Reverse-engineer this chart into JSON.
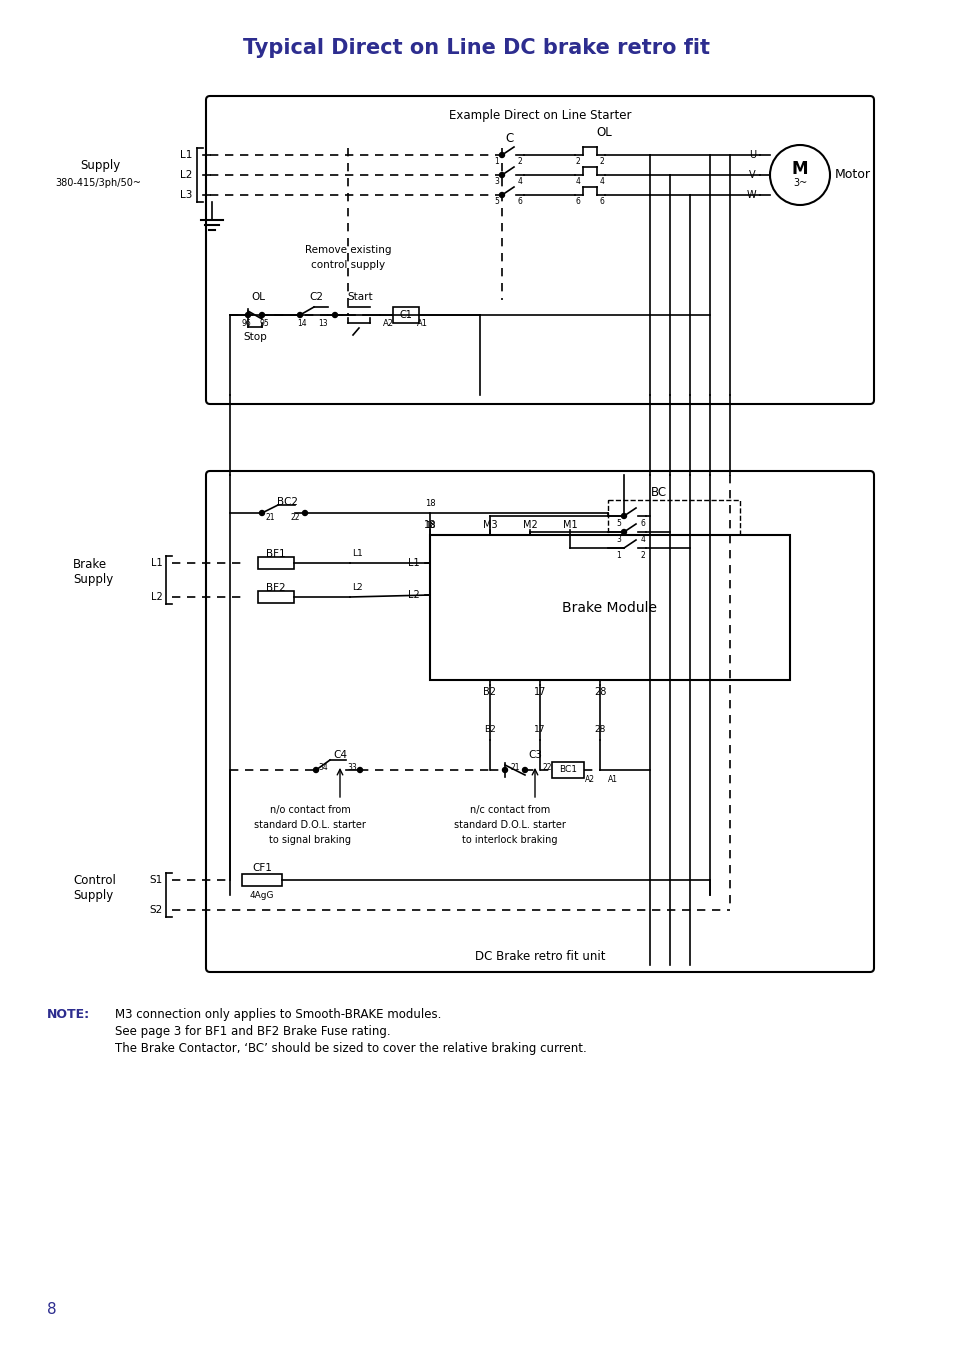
{
  "title": "Typical Direct on Line DC brake retro fit",
  "title_color": "#2d2d8f",
  "title_fontsize": 15,
  "background_color": "#ffffff",
  "note_label": "NOTE:",
  "note_lines": [
    "M3 connection only applies to Smooth-BRAKE modules.",
    "See page 3 for BF1 and BF2 Brake Fuse rating.",
    "The Brake Contactor, ‘BC’ should be sized to cover the relative braking current."
  ],
  "page_number": "8"
}
